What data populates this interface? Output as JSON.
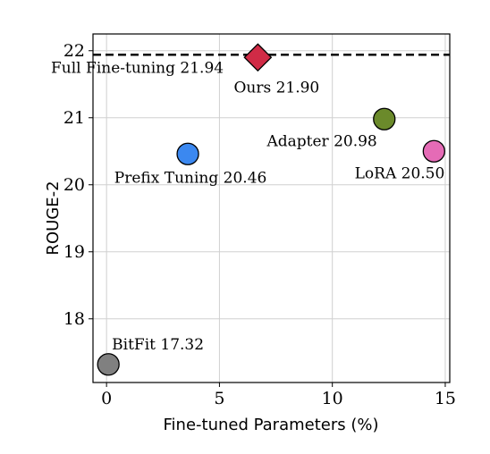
{
  "chart_data": {
    "type": "scatter",
    "title": "",
    "xlabel": "Fine-tuned Parameters (%)",
    "ylabel": "ROUGE-2",
    "xlim": [
      -0.6,
      15.2
    ],
    "ylim": [
      17.05,
      22.25
    ],
    "xticks": [
      0,
      5,
      10,
      15
    ],
    "yticks": [
      18,
      19,
      20,
      21,
      22
    ],
    "xtick_labels": [
      "0",
      "5",
      "10",
      "15"
    ],
    "ytick_labels": [
      "18",
      "19",
      "20",
      "21",
      "22"
    ],
    "grid": true,
    "legend": "none",
    "points": [
      {
        "name": "BitFit",
        "label": "BitFit 17.32",
        "x": 0.08,
        "y": 17.32,
        "color": "#808080",
        "marker": "circle"
      },
      {
        "name": "Prefix Tuning",
        "label": "Prefix Tuning 20.46",
        "x": 3.6,
        "y": 20.46,
        "color": "#3b88f0",
        "marker": "circle"
      },
      {
        "name": "Ours",
        "label": "Ours 21.90",
        "x": 6.7,
        "y": 21.9,
        "color": "#d02b46",
        "marker": "diamond"
      },
      {
        "name": "Adapter",
        "label": "Adapter 20.98",
        "x": 12.3,
        "y": 20.98,
        "color": "#6b8a2b",
        "marker": "circle"
      },
      {
        "name": "LoRA",
        "label": "LoRA 20.50",
        "x": 14.5,
        "y": 20.5,
        "color": "#e56bb6",
        "marker": "circle"
      }
    ],
    "reference_line": {
      "label": "Full Fine-tuning 21.94",
      "y": 21.94,
      "style": "dashed",
      "color": "#000000"
    }
  }
}
